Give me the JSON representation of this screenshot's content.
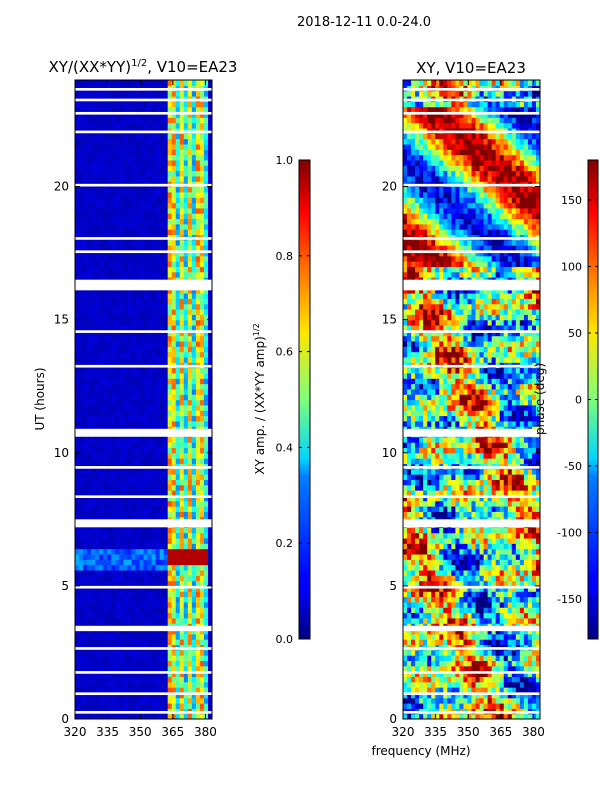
{
  "suptitle": "2018-12-11 0.0-24.0",
  "chart_data": [
    {
      "type": "heatmap",
      "title_main": "XY/(XX*YY)",
      "title_exp": "1/2",
      "title_tail": ", V10=EA23",
      "xlabel": "",
      "ylabel": "UT (hours)",
      "xlim": [
        320,
        383
      ],
      "ylim": [
        0,
        24
      ],
      "xticks": [
        "320",
        "335",
        "350",
        "365",
        "380"
      ],
      "xtick_values": [
        320,
        335,
        350,
        365,
        380
      ],
      "yticks": [
        "0",
        "5",
        "10",
        "15",
        "20"
      ],
      "ytick_values": [
        0,
        5,
        10,
        15,
        20
      ],
      "colorbar": {
        "label_main": "XY amp. / (XX*YY amp)",
        "label_exp": "1/2",
        "range": [
          0.0,
          1.0
        ],
        "ticks": [
          "0.0",
          "0.2",
          "0.4",
          "0.6",
          "0.8",
          "1.0"
        ],
        "tick_values": [
          0.0,
          0.2,
          0.4,
          0.6,
          0.8,
          1.0
        ]
      },
      "colormap": "jet",
      "band_freqs": [
        365,
        369,
        373,
        377
      ],
      "band_value": 0.45,
      "background_value": 0.05,
      "peak_band_ut": [
        5.8,
        6.4
      ],
      "peak_band_value": 0.95,
      "blank_ut_ranges": [
        [
          0.2,
          0.3
        ],
        [
          0.9,
          1.0
        ],
        [
          1.7,
          1.8
        ],
        [
          2.6,
          2.7
        ],
        [
          3.3,
          3.5
        ],
        [
          4.9,
          5.0
        ],
        [
          7.2,
          7.5
        ],
        [
          8.3,
          8.4
        ],
        [
          9.4,
          9.5
        ],
        [
          10.6,
          10.9
        ],
        [
          13.2,
          13.3
        ],
        [
          14.5,
          14.6
        ],
        [
          16.1,
          16.5
        ],
        [
          17.5,
          17.6
        ],
        [
          18.0,
          18.1
        ],
        [
          20.0,
          20.1
        ],
        [
          22.0,
          22.1
        ],
        [
          22.7,
          22.8
        ],
        [
          23.2,
          23.3
        ],
        [
          23.6,
          23.7
        ]
      ]
    },
    {
      "type": "heatmap",
      "title_main": "XY, V10=EA23",
      "xlabel": "frequency (MHz)",
      "ylabel": "",
      "xlim": [
        320,
        383
      ],
      "ylim": [
        0,
        24
      ],
      "xticks": [
        "320",
        "335",
        "350",
        "365",
        "380"
      ],
      "xtick_values": [
        320,
        335,
        350,
        365,
        380
      ],
      "yticks": [
        "0",
        "5",
        "10",
        "15",
        "20"
      ],
      "ytick_values": [
        0,
        5,
        10,
        15,
        20
      ],
      "colorbar": {
        "label_main": "phase (deg)",
        "range": [
          -180,
          180
        ],
        "ticks": [
          "-150",
          "-100",
          "-50",
          "0",
          "50",
          "100",
          "150"
        ],
        "tick_values": [
          -150,
          -100,
          -50,
          0,
          50,
          100,
          150
        ]
      },
      "colormap": "jet",
      "blank_ut_ranges": [
        [
          0.2,
          0.3
        ],
        [
          0.9,
          1.0
        ],
        [
          1.7,
          1.8
        ],
        [
          2.6,
          2.7
        ],
        [
          3.3,
          3.5
        ],
        [
          4.9,
          5.0
        ],
        [
          7.2,
          7.5
        ],
        [
          8.3,
          8.4
        ],
        [
          9.4,
          9.5
        ],
        [
          10.6,
          10.9
        ],
        [
          13.2,
          13.3
        ],
        [
          14.5,
          14.6
        ],
        [
          16.1,
          16.5
        ],
        [
          17.5,
          17.6
        ],
        [
          18.0,
          18.1
        ],
        [
          20.0,
          20.1
        ],
        [
          22.0,
          22.1
        ],
        [
          22.7,
          22.8
        ],
        [
          23.2,
          23.3
        ],
        [
          23.6,
          23.7
        ]
      ]
    }
  ]
}
